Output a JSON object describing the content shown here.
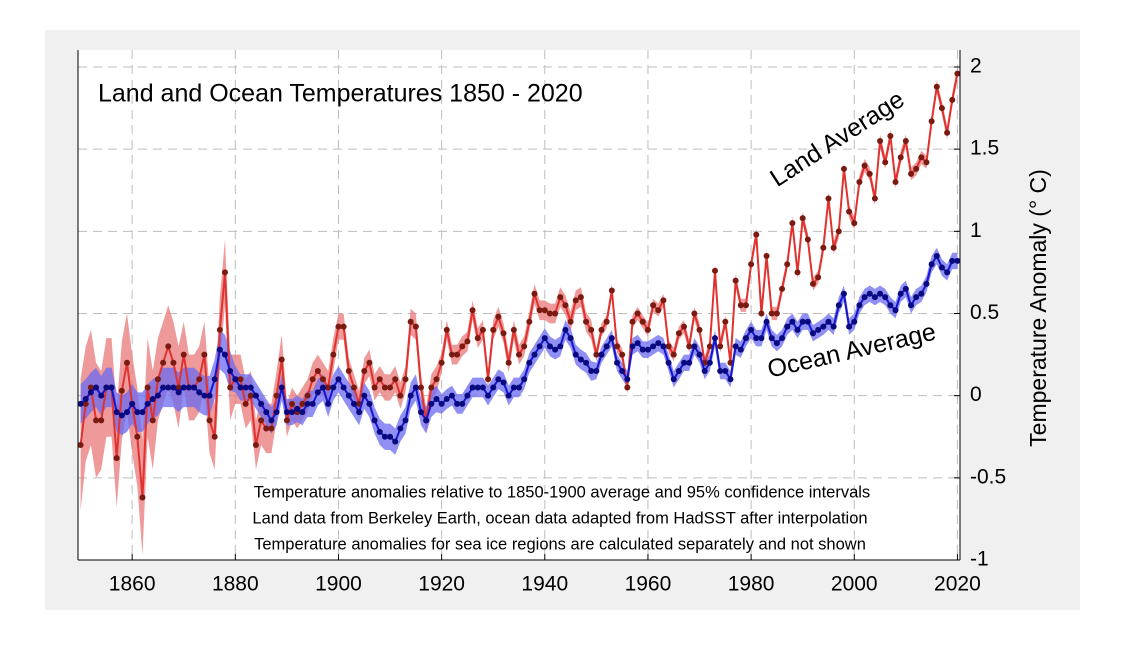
{
  "chart_data": {
    "type": "line",
    "title": "Land and Ocean Temperatures 1850 - 2020",
    "y_label": "Temperature Anomaly (° C)",
    "annotations": [
      {
        "text": "Land Average",
        "color": "#c0302a"
      },
      {
        "text": "Ocean Average",
        "color": "#1a1ab0"
      }
    ],
    "notes": [
      "Temperature anomalies relative to 1850-1900 average and 95% confidence intervals",
      "Land data from Berkeley Earth, ocean data adapted from HadSST after interpolation",
      "Temperature anomalies for sea ice regions are calculated separately and not shown"
    ],
    "x": [
      1850,
      1851,
      1852,
      1853,
      1854,
      1855,
      1856,
      1857,
      1858,
      1859,
      1860,
      1861,
      1862,
      1863,
      1864,
      1865,
      1866,
      1867,
      1868,
      1869,
      1870,
      1871,
      1872,
      1873,
      1874,
      1875,
      1876,
      1877,
      1878,
      1879,
      1880,
      1881,
      1882,
      1883,
      1884,
      1885,
      1886,
      1887,
      1888,
      1889,
      1890,
      1891,
      1892,
      1893,
      1894,
      1895,
      1896,
      1897,
      1898,
      1899,
      1900,
      1901,
      1902,
      1903,
      1904,
      1905,
      1906,
      1907,
      1908,
      1909,
      1910,
      1911,
      1912,
      1913,
      1914,
      1915,
      1916,
      1917,
      1918,
      1919,
      1920,
      1921,
      1922,
      1923,
      1924,
      1925,
      1926,
      1927,
      1928,
      1929,
      1930,
      1931,
      1932,
      1933,
      1934,
      1935,
      1936,
      1937,
      1938,
      1939,
      1940,
      1941,
      1942,
      1943,
      1944,
      1945,
      1946,
      1947,
      1948,
      1949,
      1950,
      1951,
      1952,
      1953,
      1954,
      1955,
      1956,
      1957,
      1958,
      1959,
      1960,
      1961,
      1962,
      1963,
      1964,
      1965,
      1966,
      1967,
      1968,
      1969,
      1970,
      1971,
      1972,
      1973,
      1974,
      1975,
      1976,
      1977,
      1978,
      1979,
      1980,
      1981,
      1982,
      1983,
      1984,
      1985,
      1986,
      1987,
      1988,
      1989,
      1990,
      1991,
      1992,
      1993,
      1994,
      1995,
      1996,
      1997,
      1998,
      1999,
      2000,
      2001,
      2002,
      2003,
      2004,
      2005,
      2006,
      2007,
      2008,
      2009,
      2010,
      2011,
      2012,
      2013,
      2014,
      2015,
      2016,
      2017,
      2018,
      2019,
      2020
    ],
    "series": [
      {
        "name": "Land Average",
        "color": "#e0322f",
        "band_color": "#e87878",
        "marker_color": "#7a1a10",
        "values": [
          -0.3,
          -0.05,
          0.05,
          -0.15,
          -0.15,
          0.05,
          0.05,
          -0.38,
          0.03,
          0.2,
          -0.05,
          -0.25,
          -0.62,
          0.05,
          -0.15,
          0.1,
          0.2,
          0.3,
          0.2,
          0.05,
          0.25,
          0.05,
          0.05,
          0.1,
          0.25,
          -0.15,
          -0.25,
          0.4,
          0.75,
          0.05,
          0.1,
          0.1,
          -0.05,
          0.0,
          -0.3,
          -0.15,
          -0.2,
          -0.2,
          0.0,
          0.22,
          -0.15,
          -0.05,
          -0.1,
          -0.05,
          0.0,
          0.1,
          0.15,
          0.1,
          0.05,
          0.25,
          0.42,
          0.42,
          0.15,
          0.05,
          -0.05,
          0.15,
          0.2,
          0.05,
          0.1,
          0.05,
          0.05,
          0.1,
          0.0,
          0.1,
          0.45,
          0.42,
          0.05,
          -0.15,
          0.05,
          0.1,
          0.2,
          0.4,
          0.25,
          0.25,
          0.3,
          0.33,
          0.52,
          0.35,
          0.4,
          0.1,
          0.4,
          0.48,
          0.38,
          0.2,
          0.4,
          0.25,
          0.3,
          0.45,
          0.62,
          0.52,
          0.52,
          0.5,
          0.5,
          0.6,
          0.55,
          0.45,
          0.58,
          0.6,
          0.45,
          0.4,
          0.25,
          0.4,
          0.45,
          0.64,
          0.3,
          0.25,
          0.05,
          0.45,
          0.5,
          0.45,
          0.4,
          0.55,
          0.52,
          0.58,
          0.3,
          0.25,
          0.38,
          0.42,
          0.3,
          0.5,
          0.4,
          0.2,
          0.3,
          0.76,
          0.3,
          0.45,
          0.2,
          0.7,
          0.55,
          0.55,
          0.8,
          0.98,
          0.5,
          0.85,
          0.5,
          0.5,
          0.65,
          0.8,
          1.05,
          0.75,
          1.08,
          0.95,
          0.68,
          0.72,
          0.9,
          1.2,
          0.9,
          1.0,
          1.38,
          1.12,
          1.05,
          1.3,
          1.4,
          1.35,
          1.2,
          1.55,
          1.42,
          1.58,
          1.3,
          1.45,
          1.55,
          1.35,
          1.38,
          1.45,
          1.42,
          1.67,
          1.88,
          1.75,
          1.6,
          1.8,
          1.96
        ],
        "ci": [
          0.4,
          0.35,
          0.35,
          0.35,
          0.3,
          0.3,
          0.3,
          0.3,
          0.3,
          0.3,
          0.3,
          0.3,
          0.35,
          0.3,
          0.3,
          0.25,
          0.25,
          0.25,
          0.25,
          0.25,
          0.2,
          0.2,
          0.2,
          0.2,
          0.2,
          0.2,
          0.2,
          0.2,
          0.2,
          0.2,
          0.15,
          0.15,
          0.15,
          0.15,
          0.15,
          0.15,
          0.15,
          0.15,
          0.15,
          0.15,
          0.1,
          0.1,
          0.1,
          0.1,
          0.1,
          0.1,
          0.1,
          0.1,
          0.1,
          0.1,
          0.08,
          0.08,
          0.08,
          0.08,
          0.08,
          0.08,
          0.08,
          0.08,
          0.08,
          0.08,
          0.08,
          0.08,
          0.08,
          0.08,
          0.08,
          0.08,
          0.08,
          0.08,
          0.08,
          0.08,
          0.06,
          0.06,
          0.06,
          0.06,
          0.06,
          0.06,
          0.06,
          0.06,
          0.06,
          0.06,
          0.06,
          0.06,
          0.06,
          0.06,
          0.06,
          0.06,
          0.06,
          0.06,
          0.06,
          0.06,
          0.06,
          0.06,
          0.06,
          0.06,
          0.06,
          0.06,
          0.06,
          0.06,
          0.06,
          0.06,
          0.04,
          0.04,
          0.04,
          0.04,
          0.04,
          0.04,
          0.04,
          0.04,
          0.04,
          0.04,
          0.04,
          0.04,
          0.04,
          0.04,
          0.04,
          0.04,
          0.04,
          0.04,
          0.04,
          0.04,
          0.04,
          0.04,
          0.04,
          0.04,
          0.04,
          0.04,
          0.04,
          0.04,
          0.04,
          0.04,
          0.04,
          0.04,
          0.04,
          0.04,
          0.04,
          0.04,
          0.04,
          0.04,
          0.04,
          0.04,
          0.04,
          0.04,
          0.04,
          0.04,
          0.04,
          0.04,
          0.04,
          0.04,
          0.04,
          0.04,
          0.04,
          0.04,
          0.04,
          0.04,
          0.04,
          0.04,
          0.04,
          0.04,
          0.04,
          0.04,
          0.04,
          0.04,
          0.04,
          0.04,
          0.04,
          0.04,
          0.04,
          0.04,
          0.04,
          0.04,
          0.04
        ]
      },
      {
        "name": "Ocean Average",
        "color": "#1515cc",
        "band_color": "#6a6af0",
        "marker_color": "#0a0a80",
        "values": [
          -0.05,
          -0.02,
          0.02,
          0.05,
          0.0,
          0.05,
          0.05,
          -0.1,
          -0.12,
          -0.1,
          -0.05,
          -0.1,
          -0.1,
          -0.05,
          -0.02,
          0.0,
          0.05,
          0.05,
          0.05,
          0.02,
          0.05,
          0.05,
          0.05,
          0.02,
          0.0,
          0.0,
          0.1,
          0.28,
          0.25,
          0.15,
          0.1,
          0.05,
          0.05,
          0.05,
          0.0,
          -0.05,
          -0.1,
          -0.15,
          -0.1,
          0.05,
          -0.1,
          -0.1,
          -0.08,
          -0.1,
          -0.05,
          -0.05,
          0.02,
          0.05,
          -0.05,
          0.05,
          0.1,
          0.05,
          0.0,
          -0.05,
          -0.1,
          0.0,
          -0.05,
          -0.15,
          -0.22,
          -0.25,
          -0.25,
          -0.28,
          -0.2,
          -0.15,
          0.0,
          0.05,
          -0.1,
          -0.15,
          -0.05,
          -0.02,
          -0.05,
          -0.02,
          0.0,
          -0.05,
          -0.05,
          0.0,
          0.05,
          0.05,
          0.05,
          0.0,
          0.05,
          0.1,
          0.08,
          0.0,
          0.05,
          0.05,
          0.1,
          0.2,
          0.25,
          0.3,
          0.35,
          0.3,
          0.28,
          0.3,
          0.4,
          0.35,
          0.25,
          0.22,
          0.2,
          0.15,
          0.15,
          0.25,
          0.3,
          0.35,
          0.2,
          0.15,
          0.1,
          0.3,
          0.32,
          0.28,
          0.28,
          0.3,
          0.32,
          0.3,
          0.2,
          0.1,
          0.15,
          0.2,
          0.2,
          0.3,
          0.25,
          0.15,
          0.2,
          0.35,
          0.15,
          0.15,
          0.1,
          0.3,
          0.28,
          0.35,
          0.4,
          0.35,
          0.35,
          0.45,
          0.35,
          0.32,
          0.35,
          0.42,
          0.45,
          0.4,
          0.45,
          0.45,
          0.38,
          0.4,
          0.42,
          0.45,
          0.42,
          0.55,
          0.62,
          0.42,
          0.45,
          0.55,
          0.6,
          0.62,
          0.6,
          0.62,
          0.6,
          0.55,
          0.52,
          0.62,
          0.65,
          0.55,
          0.6,
          0.62,
          0.68,
          0.8,
          0.85,
          0.78,
          0.75,
          0.82,
          0.82
        ],
        "ci": [
          0.12,
          0.12,
          0.12,
          0.12,
          0.12,
          0.12,
          0.12,
          0.12,
          0.12,
          0.12,
          0.12,
          0.12,
          0.12,
          0.12,
          0.12,
          0.12,
          0.12,
          0.12,
          0.12,
          0.12,
          0.12,
          0.12,
          0.12,
          0.12,
          0.12,
          0.12,
          0.12,
          0.12,
          0.12,
          0.12,
          0.08,
          0.08,
          0.08,
          0.08,
          0.08,
          0.08,
          0.08,
          0.08,
          0.08,
          0.08,
          0.08,
          0.08,
          0.08,
          0.08,
          0.08,
          0.08,
          0.08,
          0.08,
          0.08,
          0.08,
          0.08,
          0.08,
          0.08,
          0.08,
          0.08,
          0.08,
          0.08,
          0.08,
          0.08,
          0.08,
          0.08,
          0.08,
          0.08,
          0.08,
          0.08,
          0.08,
          0.08,
          0.08,
          0.08,
          0.08,
          0.06,
          0.06,
          0.06,
          0.06,
          0.06,
          0.06,
          0.06,
          0.06,
          0.06,
          0.06,
          0.06,
          0.06,
          0.06,
          0.06,
          0.06,
          0.06,
          0.06,
          0.06,
          0.06,
          0.06,
          0.06,
          0.06,
          0.06,
          0.06,
          0.06,
          0.06,
          0.06,
          0.06,
          0.06,
          0.06,
          0.05,
          0.05,
          0.05,
          0.05,
          0.05,
          0.05,
          0.05,
          0.05,
          0.05,
          0.05,
          0.05,
          0.05,
          0.05,
          0.05,
          0.05,
          0.05,
          0.05,
          0.05,
          0.05,
          0.05,
          0.05,
          0.05,
          0.05,
          0.05,
          0.05,
          0.05,
          0.05,
          0.05,
          0.05,
          0.05,
          0.05,
          0.05,
          0.05,
          0.05,
          0.05,
          0.05,
          0.05,
          0.05,
          0.05,
          0.05,
          0.05,
          0.05,
          0.05,
          0.05,
          0.05,
          0.05,
          0.05,
          0.05,
          0.05,
          0.05,
          0.05,
          0.05,
          0.05,
          0.05,
          0.05,
          0.05,
          0.05,
          0.05,
          0.05,
          0.05,
          0.05,
          0.05,
          0.05,
          0.05,
          0.05,
          0.05,
          0.05,
          0.05,
          0.05,
          0.05,
          0.05
        ]
      }
    ],
    "xlim": [
      1849.5,
      2020.5
    ],
    "xticks": [
      1860,
      1880,
      1900,
      1920,
      1940,
      1960,
      1980,
      2000,
      2020
    ],
    "ylim": [
      -1,
      2
    ],
    "yticks": [
      -1,
      -0.5,
      0,
      0.5,
      1,
      1.5,
      2
    ],
    "grid": true
  }
}
